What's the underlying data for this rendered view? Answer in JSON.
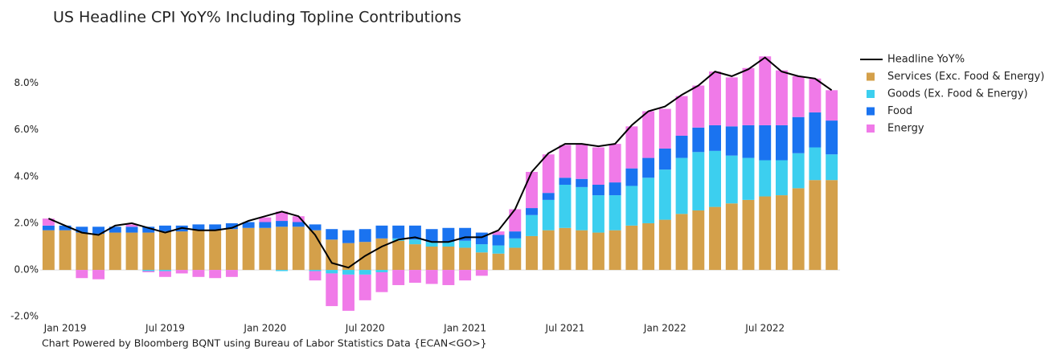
{
  "chart_data": {
    "type": "bar",
    "stacked": true,
    "title": "US Headline CPI YoY% Including Topline Contributions",
    "footnote": "Chart Powered by Bloomberg BQNT using Bureau of Labor Statistics Data   {ECAN<GO>}",
    "categories": [
      null,
      null,
      "Jan 2019",
      null,
      null,
      null,
      null,
      null,
      "Jul 2019",
      null,
      null,
      null,
      null,
      null,
      "Jan 2020",
      null,
      null,
      null,
      null,
      null,
      "Jul 2020",
      null,
      null,
      null,
      null,
      null,
      "Jan 2021",
      null,
      null,
      null,
      null,
      null,
      "Jul 2021",
      null,
      null,
      null,
      null,
      null,
      "Jan 2022",
      null,
      null,
      null,
      null,
      null,
      "Jul 2022",
      null,
      null,
      null
    ],
    "ylim": [
      -2.2,
      9.5
    ],
    "yticks": [
      {
        "value": -2,
        "label": "-2.0%"
      },
      {
        "value": 0,
        "label": "0.0%"
      },
      {
        "value": 2,
        "label": "2.0%"
      },
      {
        "value": 4,
        "label": "4.0%"
      },
      {
        "value": 6,
        "label": "6.0%"
      },
      {
        "value": 8,
        "label": "8.0%"
      }
    ],
    "legend": "right",
    "series": [
      {
        "name": "Headline YoY%",
        "type": "line",
        "color": "#000000",
        "values": [
          2.2,
          1.9,
          1.6,
          1.5,
          1.9,
          2.0,
          1.8,
          1.6,
          1.8,
          1.7,
          1.7,
          1.8,
          2.1,
          2.3,
          2.5,
          2.3,
          1.5,
          0.3,
          0.1,
          0.6,
          1.0,
          1.3,
          1.4,
          1.2,
          1.2,
          1.4,
          1.4,
          1.7,
          2.6,
          4.2,
          5.0,
          5.4,
          5.4,
          5.3,
          5.4,
          6.2,
          6.8,
          7.0,
          7.5,
          7.9,
          8.5,
          8.3,
          8.6,
          9.1,
          8.5,
          8.3,
          8.2,
          7.7
        ]
      },
      {
        "name": "Services (Exc. Food & Energy)",
        "type": "bar",
        "color": "#d4a04a",
        "values": [
          1.7,
          1.7,
          1.6,
          1.55,
          1.6,
          1.6,
          1.6,
          1.65,
          1.65,
          1.7,
          1.7,
          1.75,
          1.8,
          1.8,
          1.85,
          1.85,
          1.7,
          1.3,
          1.15,
          1.2,
          1.35,
          1.25,
          1.1,
          1.0,
          1.0,
          0.95,
          0.75,
          0.7,
          0.95,
          1.45,
          1.7,
          1.8,
          1.7,
          1.6,
          1.7,
          1.9,
          2.0,
          2.15,
          2.4,
          2.55,
          2.7,
          2.85,
          3.0,
          3.15,
          3.2,
          3.5,
          3.85,
          3.85
        ]
      },
      {
        "name": "Goods (Ex. Food & Energy)",
        "type": "bar",
        "color": "#3ccfef",
        "values": [
          0.0,
          0.0,
          0.0,
          0.0,
          0.0,
          0.0,
          -0.05,
          -0.05,
          0.0,
          0.0,
          0.0,
          0.0,
          0.0,
          0.0,
          -0.05,
          0.0,
          -0.05,
          -0.15,
          -0.2,
          -0.2,
          -0.1,
          0.1,
          0.2,
          0.2,
          0.2,
          0.3,
          0.35,
          0.35,
          0.4,
          0.9,
          1.3,
          1.85,
          1.85,
          1.6,
          1.5,
          1.7,
          1.95,
          2.15,
          2.4,
          2.5,
          2.4,
          2.05,
          1.8,
          1.55,
          1.5,
          1.5,
          1.4,
          1.1
        ]
      },
      {
        "name": "Food",
        "type": "bar",
        "color": "#1a73f0",
        "values": [
          0.2,
          0.2,
          0.25,
          0.3,
          0.25,
          0.25,
          0.25,
          0.25,
          0.25,
          0.25,
          0.25,
          0.25,
          0.25,
          0.25,
          0.25,
          0.2,
          0.25,
          0.45,
          0.55,
          0.55,
          0.55,
          0.55,
          0.6,
          0.55,
          0.6,
          0.55,
          0.5,
          0.45,
          0.3,
          0.3,
          0.3,
          0.3,
          0.35,
          0.45,
          0.55,
          0.75,
          0.85,
          0.9,
          0.95,
          1.05,
          1.1,
          1.25,
          1.4,
          1.5,
          1.5,
          1.55,
          1.5,
          1.45
        ]
      },
      {
        "name": "Energy",
        "type": "bar",
        "color": "#f07ae8",
        "values": [
          0.3,
          0.0,
          -0.35,
          -0.4,
          0.0,
          0.1,
          -0.05,
          -0.25,
          -0.15,
          -0.3,
          -0.35,
          -0.3,
          0.0,
          0.2,
          0.4,
          0.25,
          -0.4,
          -1.4,
          -1.55,
          -1.1,
          -0.85,
          -0.65,
          -0.55,
          -0.6,
          -0.65,
          -0.45,
          -0.25,
          0.15,
          0.95,
          1.55,
          1.65,
          1.4,
          1.5,
          1.6,
          1.65,
          1.8,
          2.0,
          1.7,
          1.7,
          1.8,
          2.3,
          2.1,
          2.45,
          2.95,
          2.35,
          1.75,
          1.45,
          1.3
        ]
      }
    ]
  }
}
